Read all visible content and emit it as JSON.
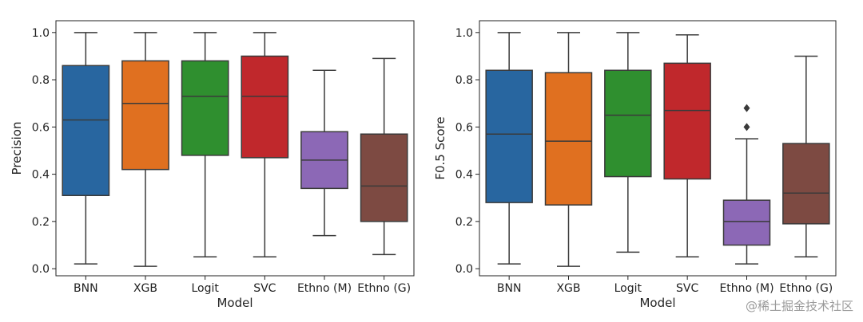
{
  "chart_data": [
    {
      "type": "box",
      "xlabel": "Model",
      "ylabel": "Precision",
      "ylim": [
        -0.03,
        1.05
      ],
      "yticks": [
        0.0,
        0.2,
        0.4,
        0.6,
        0.8,
        1.0
      ],
      "ytick_labels": [
        "0.0",
        "0.2",
        "0.4",
        "0.6",
        "0.8",
        "1.0"
      ],
      "categories": [
        "BNN",
        "XGB",
        "Logit",
        "SVC",
        "Ethno (M)",
        "Ethno (G)"
      ],
      "colors": [
        "#2866a0",
        "#e07020",
        "#2f8f2f",
        "#c0282c",
        "#8c68b6",
        "#7d4a42"
      ],
      "boxes": [
        {
          "min": 0.02,
          "q1": 0.31,
          "median": 0.63,
          "q3": 0.86,
          "max": 1.0,
          "outliers": []
        },
        {
          "min": 0.01,
          "q1": 0.42,
          "median": 0.7,
          "q3": 0.88,
          "max": 1.0,
          "outliers": []
        },
        {
          "min": 0.05,
          "q1": 0.48,
          "median": 0.73,
          "q3": 0.88,
          "max": 1.0,
          "outliers": []
        },
        {
          "min": 0.05,
          "q1": 0.47,
          "median": 0.73,
          "q3": 0.9,
          "max": 1.0,
          "outliers": []
        },
        {
          "min": 0.14,
          "q1": 0.34,
          "median": 0.46,
          "q3": 0.58,
          "max": 0.84,
          "outliers": []
        },
        {
          "min": 0.06,
          "q1": 0.2,
          "median": 0.35,
          "q3": 0.57,
          "max": 0.89,
          "outliers": []
        }
      ]
    },
    {
      "type": "box",
      "xlabel": "Model",
      "ylabel": "F0.5 Score",
      "ylim": [
        -0.03,
        1.05
      ],
      "yticks": [
        0.0,
        0.2,
        0.4,
        0.6,
        0.8,
        1.0
      ],
      "ytick_labels": [
        "0.0",
        "0.2",
        "0.4",
        "0.6",
        "0.8",
        "1.0"
      ],
      "categories": [
        "BNN",
        "XGB",
        "Logit",
        "SVC",
        "Ethno (M)",
        "Ethno (G)"
      ],
      "colors": [
        "#2866a0",
        "#e07020",
        "#2f8f2f",
        "#c0282c",
        "#8c68b6",
        "#7d4a42"
      ],
      "boxes": [
        {
          "min": 0.02,
          "q1": 0.28,
          "median": 0.57,
          "q3": 0.84,
          "max": 1.0,
          "outliers": []
        },
        {
          "min": 0.01,
          "q1": 0.27,
          "median": 0.54,
          "q3": 0.83,
          "max": 1.0,
          "outliers": []
        },
        {
          "min": 0.07,
          "q1": 0.39,
          "median": 0.65,
          "q3": 0.84,
          "max": 1.0,
          "outliers": []
        },
        {
          "min": 0.05,
          "q1": 0.38,
          "median": 0.67,
          "q3": 0.87,
          "max": 0.99,
          "outliers": []
        },
        {
          "min": 0.02,
          "q1": 0.1,
          "median": 0.2,
          "q3": 0.29,
          "max": 0.55,
          "outliers": [
            0.6,
            0.68
          ]
        },
        {
          "min": 0.05,
          "q1": 0.19,
          "median": 0.32,
          "q3": 0.53,
          "max": 0.9,
          "outliers": []
        }
      ]
    }
  ],
  "watermark": "@稀土掘金技术社区"
}
